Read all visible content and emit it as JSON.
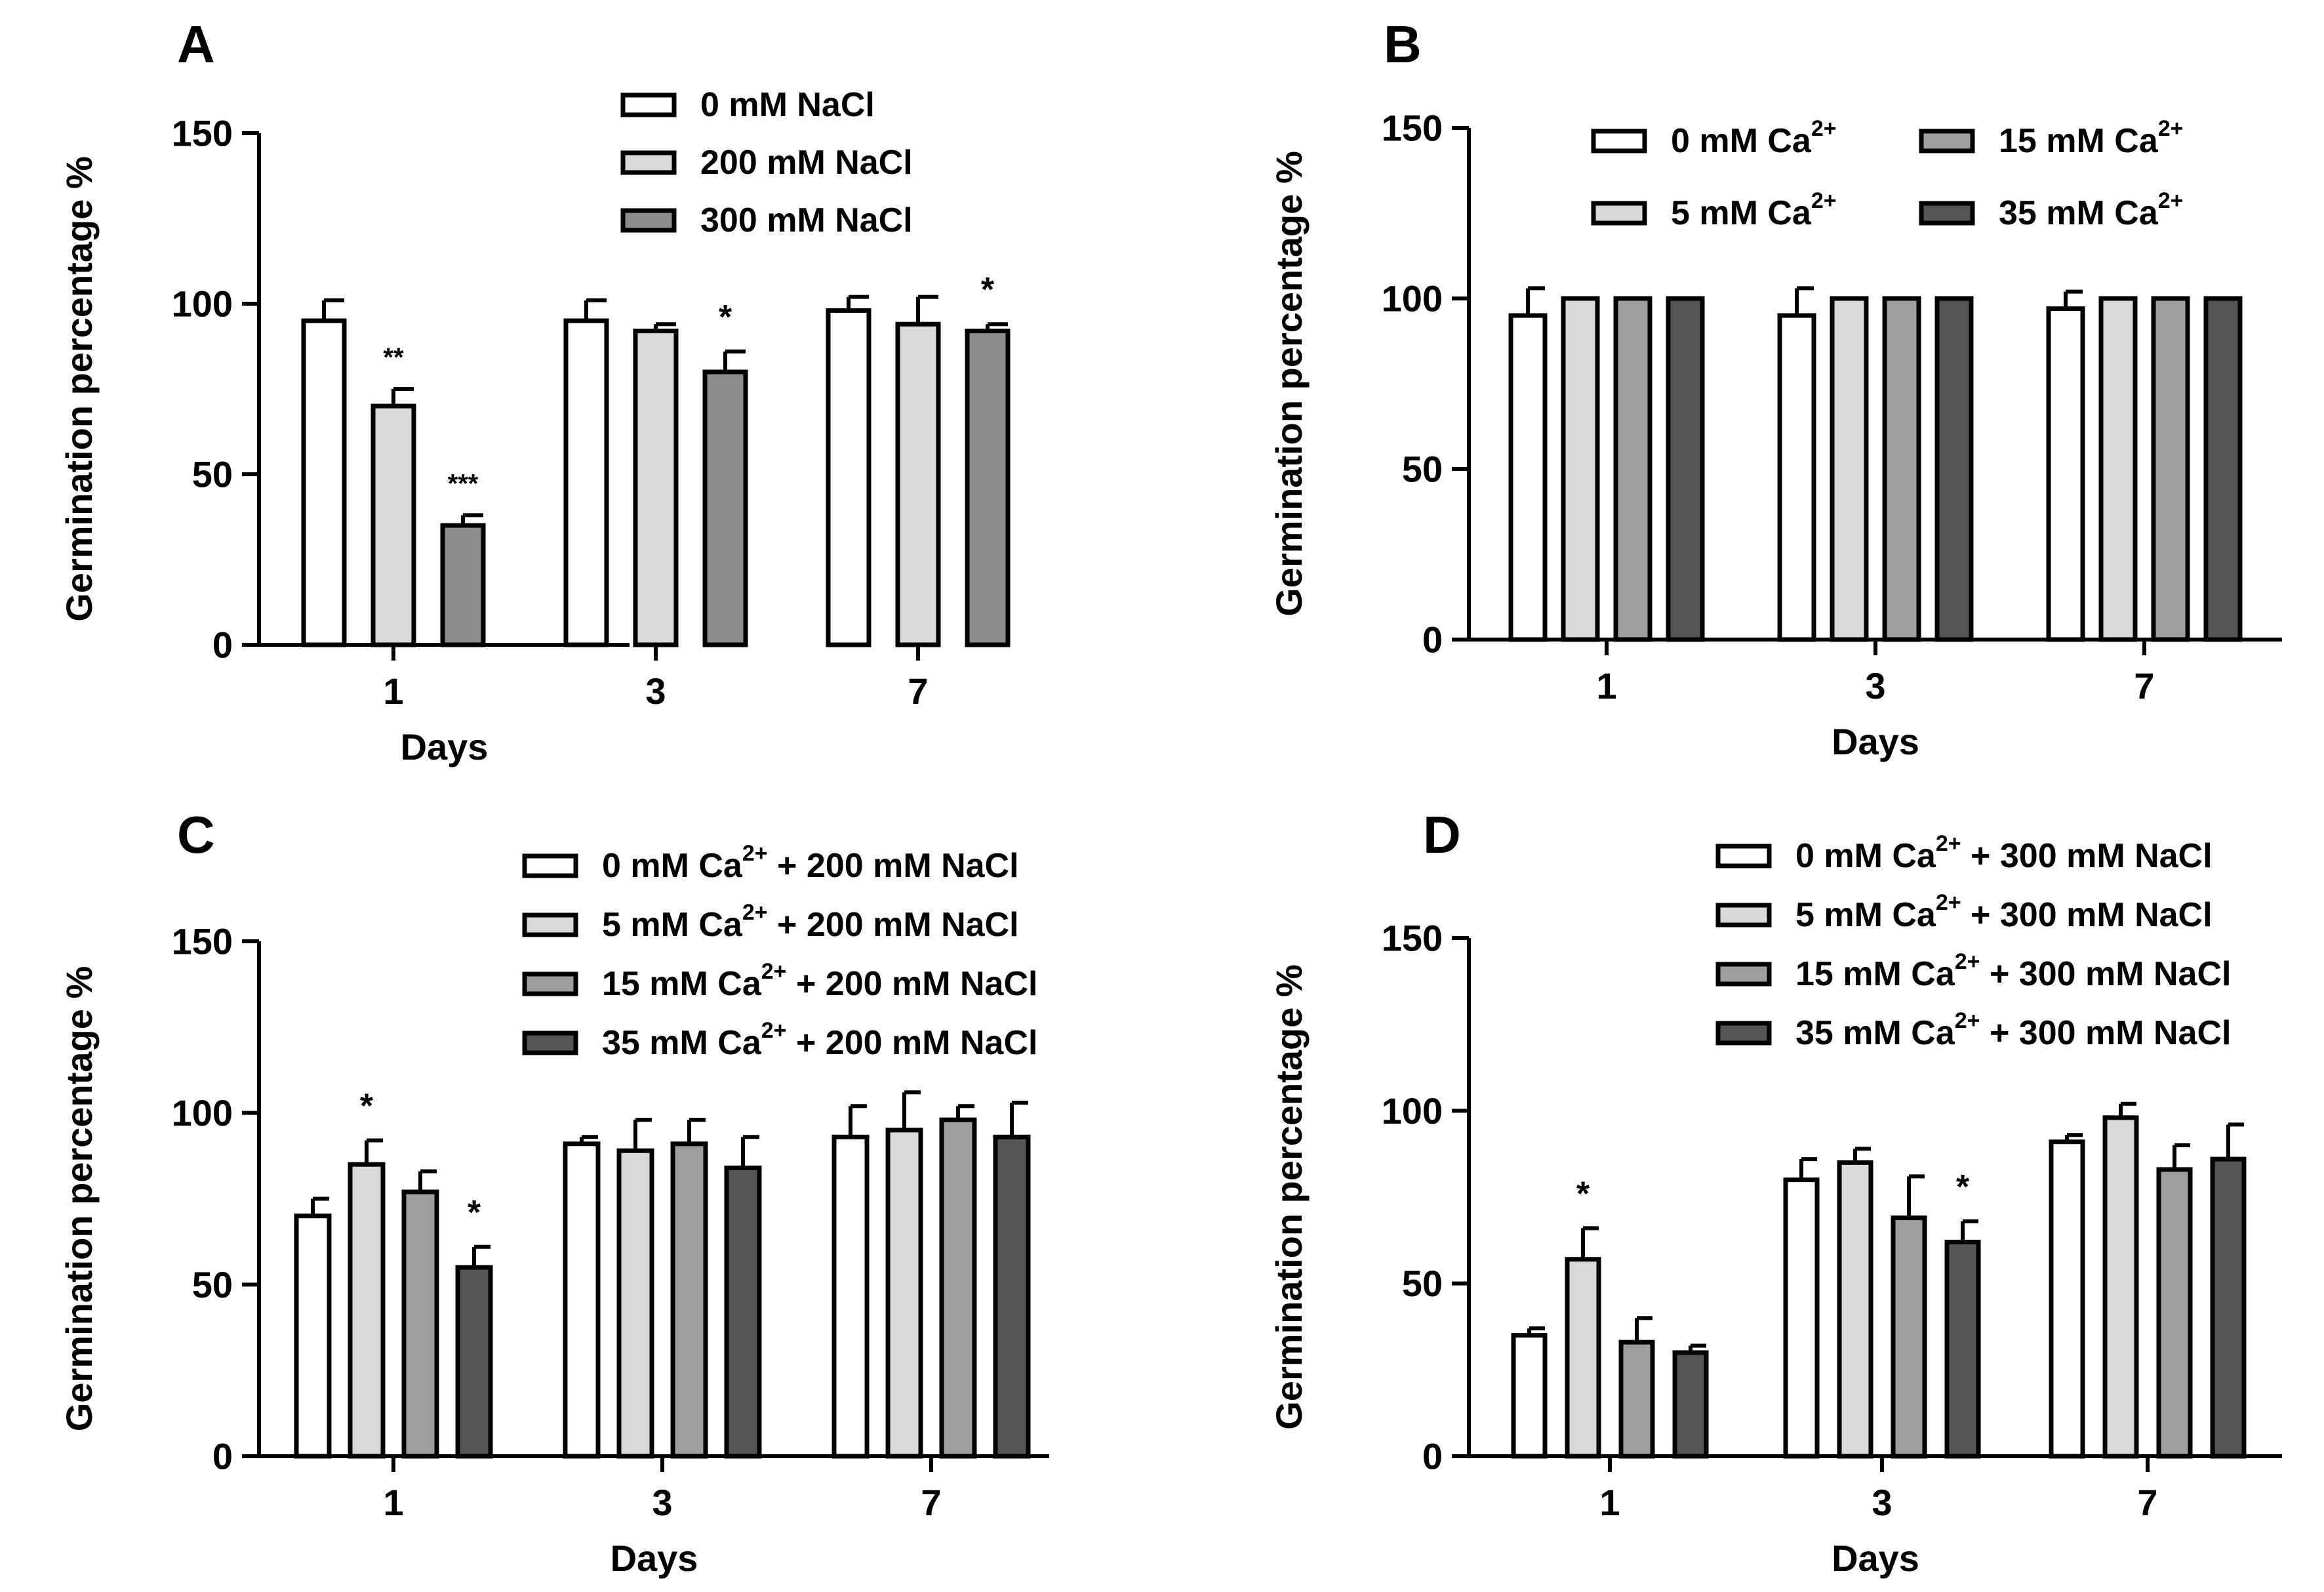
{
  "figure": {
    "xlabel_word": "Days",
    "ylabel_word": "Germination percentage %"
  },
  "chart_data": [
    {
      "panel": "A",
      "type": "bar",
      "title": "A",
      "xlabel": "Days",
      "ylabel": "Germination percentage %",
      "ylim": [
        0,
        150
      ],
      "yticks": [
        "0",
        "50",
        "100",
        "150"
      ],
      "categories": [
        "1",
        "3",
        "7"
      ],
      "legend_placement": "top-center",
      "series": [
        {
          "name": "0 mM NaCl",
          "values": [
            95,
            95,
            98
          ],
          "errors": [
            6,
            6,
            4
          ],
          "stars": [
            "",
            "",
            ""
          ],
          "fill": "#ffffff"
        },
        {
          "name": "200 mM NaCl",
          "values": [
            70,
            92,
            94
          ],
          "errors": [
            5,
            2,
            8
          ],
          "stars": [
            "**",
            "",
            ""
          ],
          "fill": "#d9d9d9"
        },
        {
          "name": "300 mM NaCl",
          "values": [
            35,
            80,
            92
          ],
          "errors": [
            3,
            6,
            2
          ],
          "stars": [
            "***",
            "*",
            "*"
          ],
          "fill": "#8c8c8c"
        }
      ]
    },
    {
      "panel": "B",
      "type": "bar",
      "title": "B",
      "xlabel": "Days",
      "ylabel": "Germination percentage %",
      "ylim": [
        0,
        150
      ],
      "yticks": [
        "0",
        "50",
        "100",
        "150"
      ],
      "categories": [
        "1",
        "3",
        "7"
      ],
      "legend_placement": "top, two columns",
      "series": [
        {
          "name": "0 mM Ca",
          "sup": "2+",
          "values": [
            95,
            95,
            97
          ],
          "errors": [
            8,
            8,
            5
          ],
          "stars": [
            "",
            "",
            ""
          ],
          "fill": "#ffffff"
        },
        {
          "name": "5 mM Ca",
          "sup": "2+",
          "values": [
            100,
            100,
            100
          ],
          "errors": [
            0,
            0,
            0
          ],
          "stars": [
            "",
            "",
            ""
          ],
          "fill": "#d9d9d9"
        },
        {
          "name": "15 mM Ca",
          "sup": "2+",
          "values": [
            100,
            100,
            100
          ],
          "errors": [
            0,
            0,
            0
          ],
          "stars": [
            "",
            "",
            ""
          ],
          "fill": "#9e9e9e"
        },
        {
          "name": "35 mM Ca",
          "sup": "2+",
          "values": [
            100,
            100,
            100
          ],
          "errors": [
            0,
            0,
            0
          ],
          "stars": [
            "",
            "",
            ""
          ],
          "fill": "#555555"
        }
      ]
    },
    {
      "panel": "C",
      "type": "bar",
      "title": "C",
      "xlabel": "Days",
      "ylabel": "Germination percentage %",
      "ylim": [
        0,
        150
      ],
      "yticks": [
        "0",
        "50",
        "100",
        "150"
      ],
      "categories": [
        "1",
        "3",
        "7"
      ],
      "legend_placement": "top-right",
      "series": [
        {
          "name": "0 mM Ca",
          "sup": "2+",
          "suffix": " + 200 mM NaCl",
          "values": [
            70,
            91,
            93
          ],
          "errors": [
            5,
            2,
            9
          ],
          "stars": [
            "",
            "",
            ""
          ],
          "fill": "#ffffff"
        },
        {
          "name": "5 mM Ca",
          "sup": "2+",
          "suffix": " + 200 mM NaCl",
          "values": [
            85,
            89,
            95
          ],
          "errors": [
            7,
            9,
            11
          ],
          "stars": [
            "*",
            "",
            ""
          ],
          "fill": "#d9d9d9"
        },
        {
          "name": "15 mM Ca",
          "sup": "2+",
          "suffix": " + 200 mM NaCl",
          "values": [
            77,
            91,
            98
          ],
          "errors": [
            6,
            7,
            4
          ],
          "stars": [
            "",
            "",
            ""
          ],
          "fill": "#9e9e9e"
        },
        {
          "name": "35 mM Ca",
          "sup": "2+",
          "suffix": " + 200 mM NaCl",
          "values": [
            55,
            84,
            93
          ],
          "errors": [
            6,
            9,
            10
          ],
          "stars": [
            "*",
            "",
            ""
          ],
          "fill": "#555555"
        }
      ]
    },
    {
      "panel": "D",
      "type": "bar",
      "title": "D",
      "xlabel": "Days",
      "ylabel": "Germination percentage %",
      "ylim": [
        0,
        150
      ],
      "yticks": [
        "0",
        "50",
        "100",
        "150"
      ],
      "categories": [
        "1",
        "3",
        "7"
      ],
      "legend_placement": "top-right",
      "series": [
        {
          "name": "0 mM Ca",
          "sup": "2+",
          "suffix": " + 300 mM NaCl",
          "values": [
            35,
            80,
            91
          ],
          "errors": [
            2,
            6,
            2
          ],
          "stars": [
            "",
            "",
            ""
          ],
          "fill": "#ffffff"
        },
        {
          "name": "5 mM Ca",
          "sup": "2+",
          "suffix": " + 300 mM NaCl",
          "values": [
            57,
            85,
            98
          ],
          "errors": [
            9,
            4,
            4
          ],
          "stars": [
            "*",
            "",
            ""
          ],
          "fill": "#d9d9d9"
        },
        {
          "name": "15 mM Ca",
          "sup": "2+",
          "suffix": " + 300 mM NaCl",
          "values": [
            33,
            69,
            83
          ],
          "errors": [
            7,
            12,
            7
          ],
          "stars": [
            "",
            "",
            ""
          ],
          "fill": "#9e9e9e"
        },
        {
          "name": "35 mM Ca",
          "sup": "2+",
          "suffix": " + 300 mM NaCl",
          "values": [
            30,
            62,
            86
          ],
          "errors": [
            2,
            6,
            10
          ],
          "stars": [
            "",
            "*",
            ""
          ],
          "fill": "#555555"
        }
      ]
    }
  ]
}
